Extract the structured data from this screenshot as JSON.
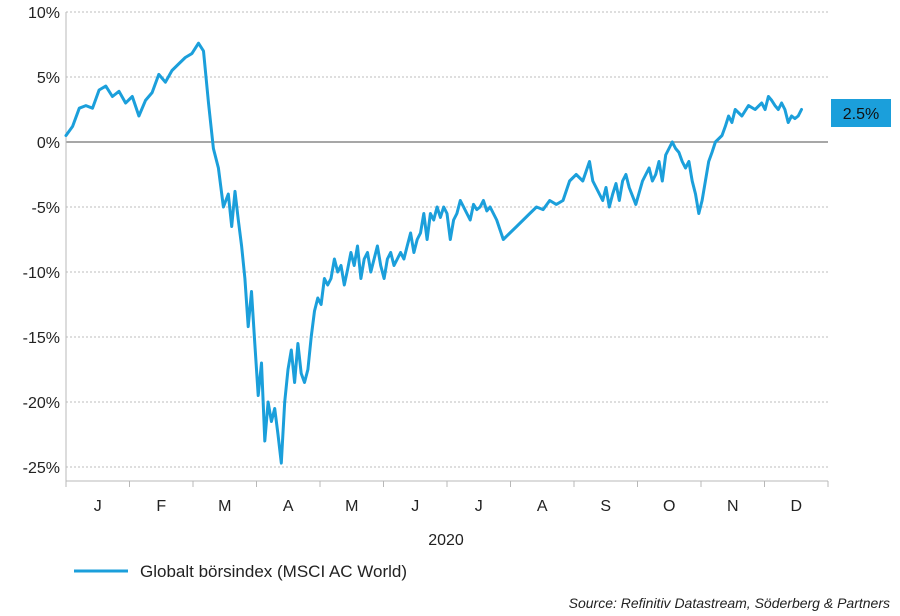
{
  "chart_data": {
    "type": "line",
    "xlabel": "2020",
    "ylabel": "",
    "y_ticks": [
      "10%",
      "5%",
      "0%",
      "-5%",
      "-10%",
      "-15%",
      "-20%",
      "-25%"
    ],
    "ylim": [
      -25,
      10
    ],
    "x_ticks": [
      "J",
      "F",
      "M",
      "A",
      "M",
      "J",
      "J",
      "A",
      "S",
      "O",
      "N",
      "D"
    ],
    "grid": "horizontal-dotted",
    "legend_position": "bottom-left",
    "end_label": "2.5%",
    "source": "Source: Refinitiv Datastream, Söderberg & Partners",
    "series": [
      {
        "name": "Globalt börsindex (MSCI AC World)",
        "color": "#1b9fdb",
        "points": [
          [
            0,
            0.5
          ],
          [
            0.2,
            1.2
          ],
          [
            0.4,
            2.6
          ],
          [
            0.6,
            2.8
          ],
          [
            0.8,
            2.6
          ],
          [
            1.0,
            4.0
          ],
          [
            1.2,
            4.3
          ],
          [
            1.4,
            3.5
          ],
          [
            1.6,
            3.9
          ],
          [
            1.8,
            3.0
          ],
          [
            2.0,
            3.5
          ],
          [
            2.2,
            2.0
          ],
          [
            2.4,
            3.2
          ],
          [
            2.6,
            3.8
          ],
          [
            2.8,
            5.2
          ],
          [
            3.0,
            4.6
          ],
          [
            3.2,
            5.5
          ],
          [
            3.4,
            6.0
          ],
          [
            3.6,
            6.5
          ],
          [
            3.8,
            6.8
          ],
          [
            4.0,
            7.6
          ],
          [
            4.15,
            7.0
          ],
          [
            4.3,
            3.0
          ],
          [
            4.45,
            -0.5
          ],
          [
            4.6,
            -2.0
          ],
          [
            4.75,
            -5.0
          ],
          [
            4.9,
            -4.0
          ],
          [
            5.0,
            -6.5
          ],
          [
            5.1,
            -3.8
          ],
          [
            5.2,
            -6.0
          ],
          [
            5.3,
            -8.0
          ],
          [
            5.4,
            -10.5
          ],
          [
            5.5,
            -14.2
          ],
          [
            5.6,
            -11.5
          ],
          [
            5.7,
            -15.5
          ],
          [
            5.8,
            -19.5
          ],
          [
            5.9,
            -17.0
          ],
          [
            6.0,
            -23.0
          ],
          [
            6.1,
            -20.0
          ],
          [
            6.2,
            -21.5
          ],
          [
            6.3,
            -20.5
          ],
          [
            6.4,
            -22.5
          ],
          [
            6.5,
            -24.7
          ],
          [
            6.6,
            -20.0
          ],
          [
            6.7,
            -17.5
          ],
          [
            6.8,
            -16.0
          ],
          [
            6.9,
            -18.5
          ],
          [
            7.0,
            -15.5
          ],
          [
            7.1,
            -17.8
          ],
          [
            7.2,
            -18.5
          ],
          [
            7.3,
            -17.5
          ],
          [
            7.4,
            -15.0
          ],
          [
            7.5,
            -13.0
          ],
          [
            7.6,
            -12.0
          ],
          [
            7.7,
            -12.5
          ],
          [
            7.8,
            -10.5
          ],
          [
            7.9,
            -11.0
          ],
          [
            8.0,
            -10.5
          ],
          [
            8.1,
            -9.0
          ],
          [
            8.2,
            -10.0
          ],
          [
            8.3,
            -9.5
          ],
          [
            8.4,
            -11.0
          ],
          [
            8.5,
            -9.8
          ],
          [
            8.6,
            -8.5
          ],
          [
            8.7,
            -9.5
          ],
          [
            8.8,
            -8.0
          ],
          [
            8.9,
            -10.5
          ],
          [
            9.0,
            -9.0
          ],
          [
            9.1,
            -8.5
          ],
          [
            9.2,
            -10.0
          ],
          [
            9.3,
            -9.0
          ],
          [
            9.4,
            -8.0
          ],
          [
            9.5,
            -9.5
          ],
          [
            9.6,
            -10.5
          ],
          [
            9.7,
            -9.0
          ],
          [
            9.8,
            -8.5
          ],
          [
            9.9,
            -9.5
          ],
          [
            10.0,
            -9.0
          ],
          [
            10.1,
            -8.5
          ],
          [
            10.2,
            -9.0
          ],
          [
            10.3,
            -8.0
          ],
          [
            10.4,
            -7.0
          ],
          [
            10.5,
            -8.5
          ],
          [
            10.6,
            -7.5
          ],
          [
            10.7,
            -7.0
          ],
          [
            10.8,
            -5.5
          ],
          [
            10.9,
            -7.5
          ],
          [
            11.0,
            -5.5
          ],
          [
            11.1,
            -6.0
          ],
          [
            11.2,
            -5.0
          ],
          [
            11.3,
            -5.8
          ],
          [
            11.4,
            -5.0
          ],
          [
            11.5,
            -5.5
          ],
          [
            11.6,
            -7.5
          ],
          [
            11.7,
            -6.0
          ],
          [
            11.8,
            -5.5
          ],
          [
            11.9,
            -4.5
          ],
          [
            12.0,
            -5.0
          ],
          [
            12.1,
            -5.5
          ],
          [
            12.2,
            -6.0
          ],
          [
            12.3,
            -4.8
          ],
          [
            12.4,
            -5.2
          ],
          [
            12.5,
            -5.0
          ],
          [
            12.6,
            -4.5
          ],
          [
            12.7,
            -5.3
          ],
          [
            12.8,
            -5.0
          ],
          [
            12.9,
            -5.5
          ],
          [
            13.0,
            -6.0
          ],
          [
            13.2,
            -7.5
          ],
          [
            13.4,
            -7.0
          ],
          [
            13.6,
            -6.5
          ],
          [
            13.8,
            -6.0
          ],
          [
            14.0,
            -5.5
          ],
          [
            14.2,
            -5.0
          ],
          [
            14.4,
            -5.2
          ],
          [
            14.6,
            -4.5
          ],
          [
            14.8,
            -4.8
          ],
          [
            15.0,
            -4.5
          ],
          [
            15.2,
            -3.0
          ],
          [
            15.4,
            -2.5
          ],
          [
            15.6,
            -3.0
          ],
          [
            15.8,
            -1.5
          ],
          [
            15.9,
            -3.0
          ],
          [
            16.0,
            -3.5
          ],
          [
            16.2,
            -4.5
          ],
          [
            16.3,
            -3.5
          ],
          [
            16.4,
            -5.0
          ],
          [
            16.5,
            -4.0
          ],
          [
            16.6,
            -3.2
          ],
          [
            16.7,
            -4.5
          ],
          [
            16.8,
            -3.0
          ],
          [
            16.9,
            -2.5
          ],
          [
            17.0,
            -3.5
          ],
          [
            17.2,
            -4.8
          ],
          [
            17.4,
            -3.0
          ],
          [
            17.6,
            -2.0
          ],
          [
            17.7,
            -3.0
          ],
          [
            17.8,
            -2.5
          ],
          [
            17.9,
            -1.5
          ],
          [
            18.0,
            -3.0
          ],
          [
            18.1,
            -1.0
          ],
          [
            18.2,
            -0.5
          ],
          [
            18.3,
            0.0
          ],
          [
            18.4,
            -0.5
          ],
          [
            18.5,
            -0.8
          ],
          [
            18.6,
            -1.5
          ],
          [
            18.7,
            -2.0
          ],
          [
            18.8,
            -1.5
          ],
          [
            18.9,
            -3.0
          ],
          [
            19.0,
            -4.0
          ],
          [
            19.1,
            -5.5
          ],
          [
            19.2,
            -4.5
          ],
          [
            19.3,
            -3.0
          ],
          [
            19.4,
            -1.5
          ],
          [
            19.5,
            -0.8
          ],
          [
            19.6,
            0.0
          ],
          [
            19.8,
            0.5
          ],
          [
            19.9,
            1.2
          ],
          [
            20.0,
            2.0
          ],
          [
            20.1,
            1.5
          ],
          [
            20.2,
            2.5
          ],
          [
            20.4,
            2.0
          ],
          [
            20.6,
            2.8
          ],
          [
            20.8,
            2.5
          ],
          [
            21.0,
            3.0
          ],
          [
            21.1,
            2.5
          ],
          [
            21.2,
            3.5
          ],
          [
            21.3,
            3.2
          ],
          [
            21.4,
            2.8
          ],
          [
            21.5,
            2.5
          ],
          [
            21.6,
            3.0
          ],
          [
            21.7,
            2.5
          ],
          [
            21.8,
            1.5
          ],
          [
            21.9,
            2.0
          ],
          [
            22.0,
            1.8
          ],
          [
            22.1,
            2.0
          ],
          [
            22.2,
            2.5
          ]
        ]
      }
    ]
  }
}
